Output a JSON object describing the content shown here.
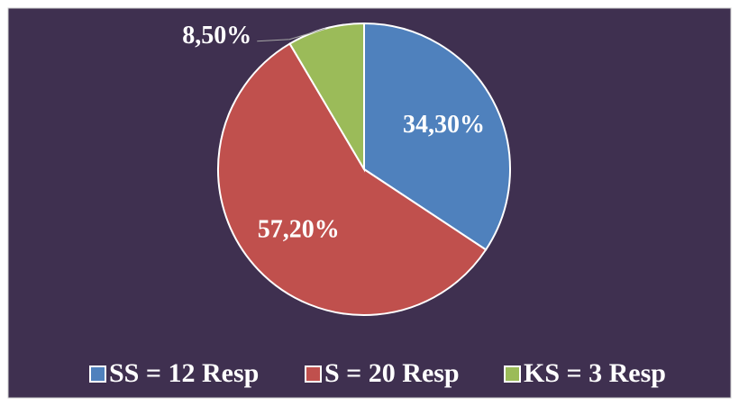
{
  "chart_data": {
    "type": "pie",
    "categories": [
      "SS = 12 Resp",
      "S = 20 Resp",
      "KS = 3 Resp"
    ],
    "values": [
      34.3,
      57.2,
      8.5
    ],
    "value_labels": [
      "34,30%",
      "57,20%",
      "8,50%"
    ],
    "colors": [
      "#4f81bd",
      "#c0504d",
      "#9bbb59"
    ],
    "legend": "bottom"
  }
}
